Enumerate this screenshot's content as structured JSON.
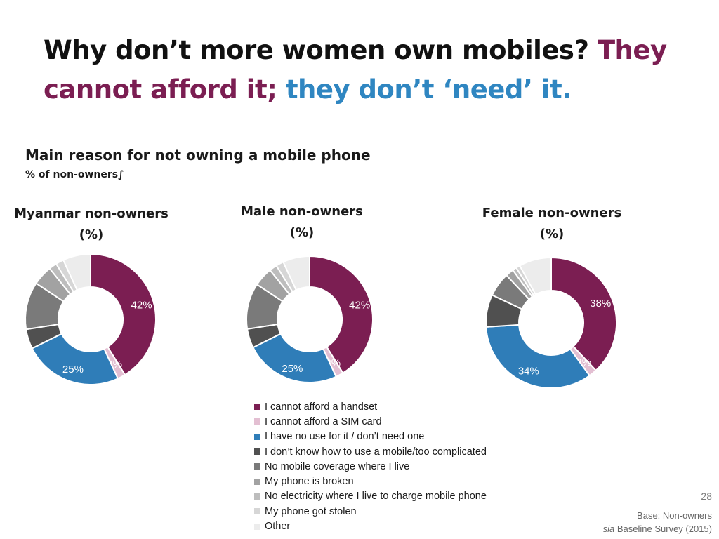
{
  "title": {
    "part1": "Why don’t more women own mobiles?",
    "part2": "They cannot afford it;",
    "part3": "they don’t ‘need’ it."
  },
  "chart_heading": "Main reason for not owning a mobile phone",
  "chart_subheading": "% of non-owners∫",
  "chart_data": {
    "type": "donut",
    "categories": [
      "I cannot afford a handset",
      "I cannot afford a SIM card",
      "I have no use for it / don’t need one",
      "I don’t know how to use a mobile/too complicated",
      "No mobile coverage where I live",
      "My phone is broken",
      "No electricity where I live to charge mobile phone",
      "My phone got stolen",
      "Other"
    ],
    "colors": [
      "#7b1e52",
      "#e3bfd2",
      "#2f7db8",
      "#505050",
      "#7a7a7a",
      "#a2a2a2",
      "#bdbdbd",
      "#d6d6d6",
      "#ececec"
    ],
    "panels": [
      {
        "title": "Myanmar non-owners",
        "unit": "(%)",
        "values": [
          42,
          2,
          25,
          5,
          12,
          5,
          2,
          2,
          7
        ],
        "labels": [
          "42%",
          "2%",
          "25%",
          "",
          "",
          "",
          "",
          "",
          ""
        ]
      },
      {
        "title": "Male non-owners",
        "unit": "(%)",
        "values": [
          42,
          2,
          25,
          5,
          12,
          5,
          2,
          2,
          7
        ],
        "labels": [
          "42%",
          "2%",
          "25%",
          "",
          "",
          "",
          "",
          "",
          ""
        ]
      },
      {
        "title": "Female non-owners",
        "unit": "(%)",
        "values": [
          38,
          2,
          34,
          8,
          6,
          2,
          1,
          1,
          8
        ],
        "labels": [
          "38%",
          "2%",
          "34%",
          "",
          "",
          "",
          "",
          "",
          ""
        ]
      }
    ]
  },
  "footer": {
    "page_number": "28",
    "base": "Base: Non-owners",
    "source_italic": "sia",
    "source_rest": "Baseline Survey (2015)"
  }
}
